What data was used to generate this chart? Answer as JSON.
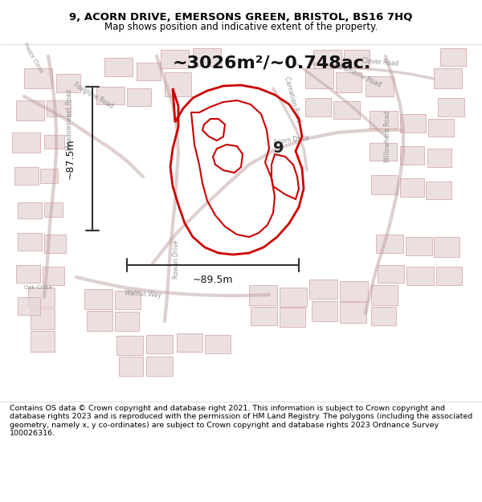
{
  "title_line1": "9, ACORN DRIVE, EMERSONS GREEN, BRISTOL, BS16 7HQ",
  "title_line2": "Map shows position and indicative extent of the property.",
  "area_text": "~3026m²/~0.748ac.",
  "width_label": "~89.5m",
  "height_label": "~87.5m",
  "property_number": "9",
  "footer_text": "Contains OS data © Crown copyright and database right 2021. This information is subject to Crown copyright and database rights 2023 and is reproduced with the permission of HM Land Registry. The polygons (including the associated geometry, namely x, y co-ordinates) are subject to Crown copyright and database rights 2023 Ordnance Survey 100026316.",
  "bg_color": "#ece8e8",
  "highlight_color": "#cc0000",
  "title_bg": "#ffffff",
  "footer_bg": "#ffffff",
  "road_color": "#c0a0a0",
  "building_face": "#e8d8d8",
  "building_edge": "#d4a8a8"
}
